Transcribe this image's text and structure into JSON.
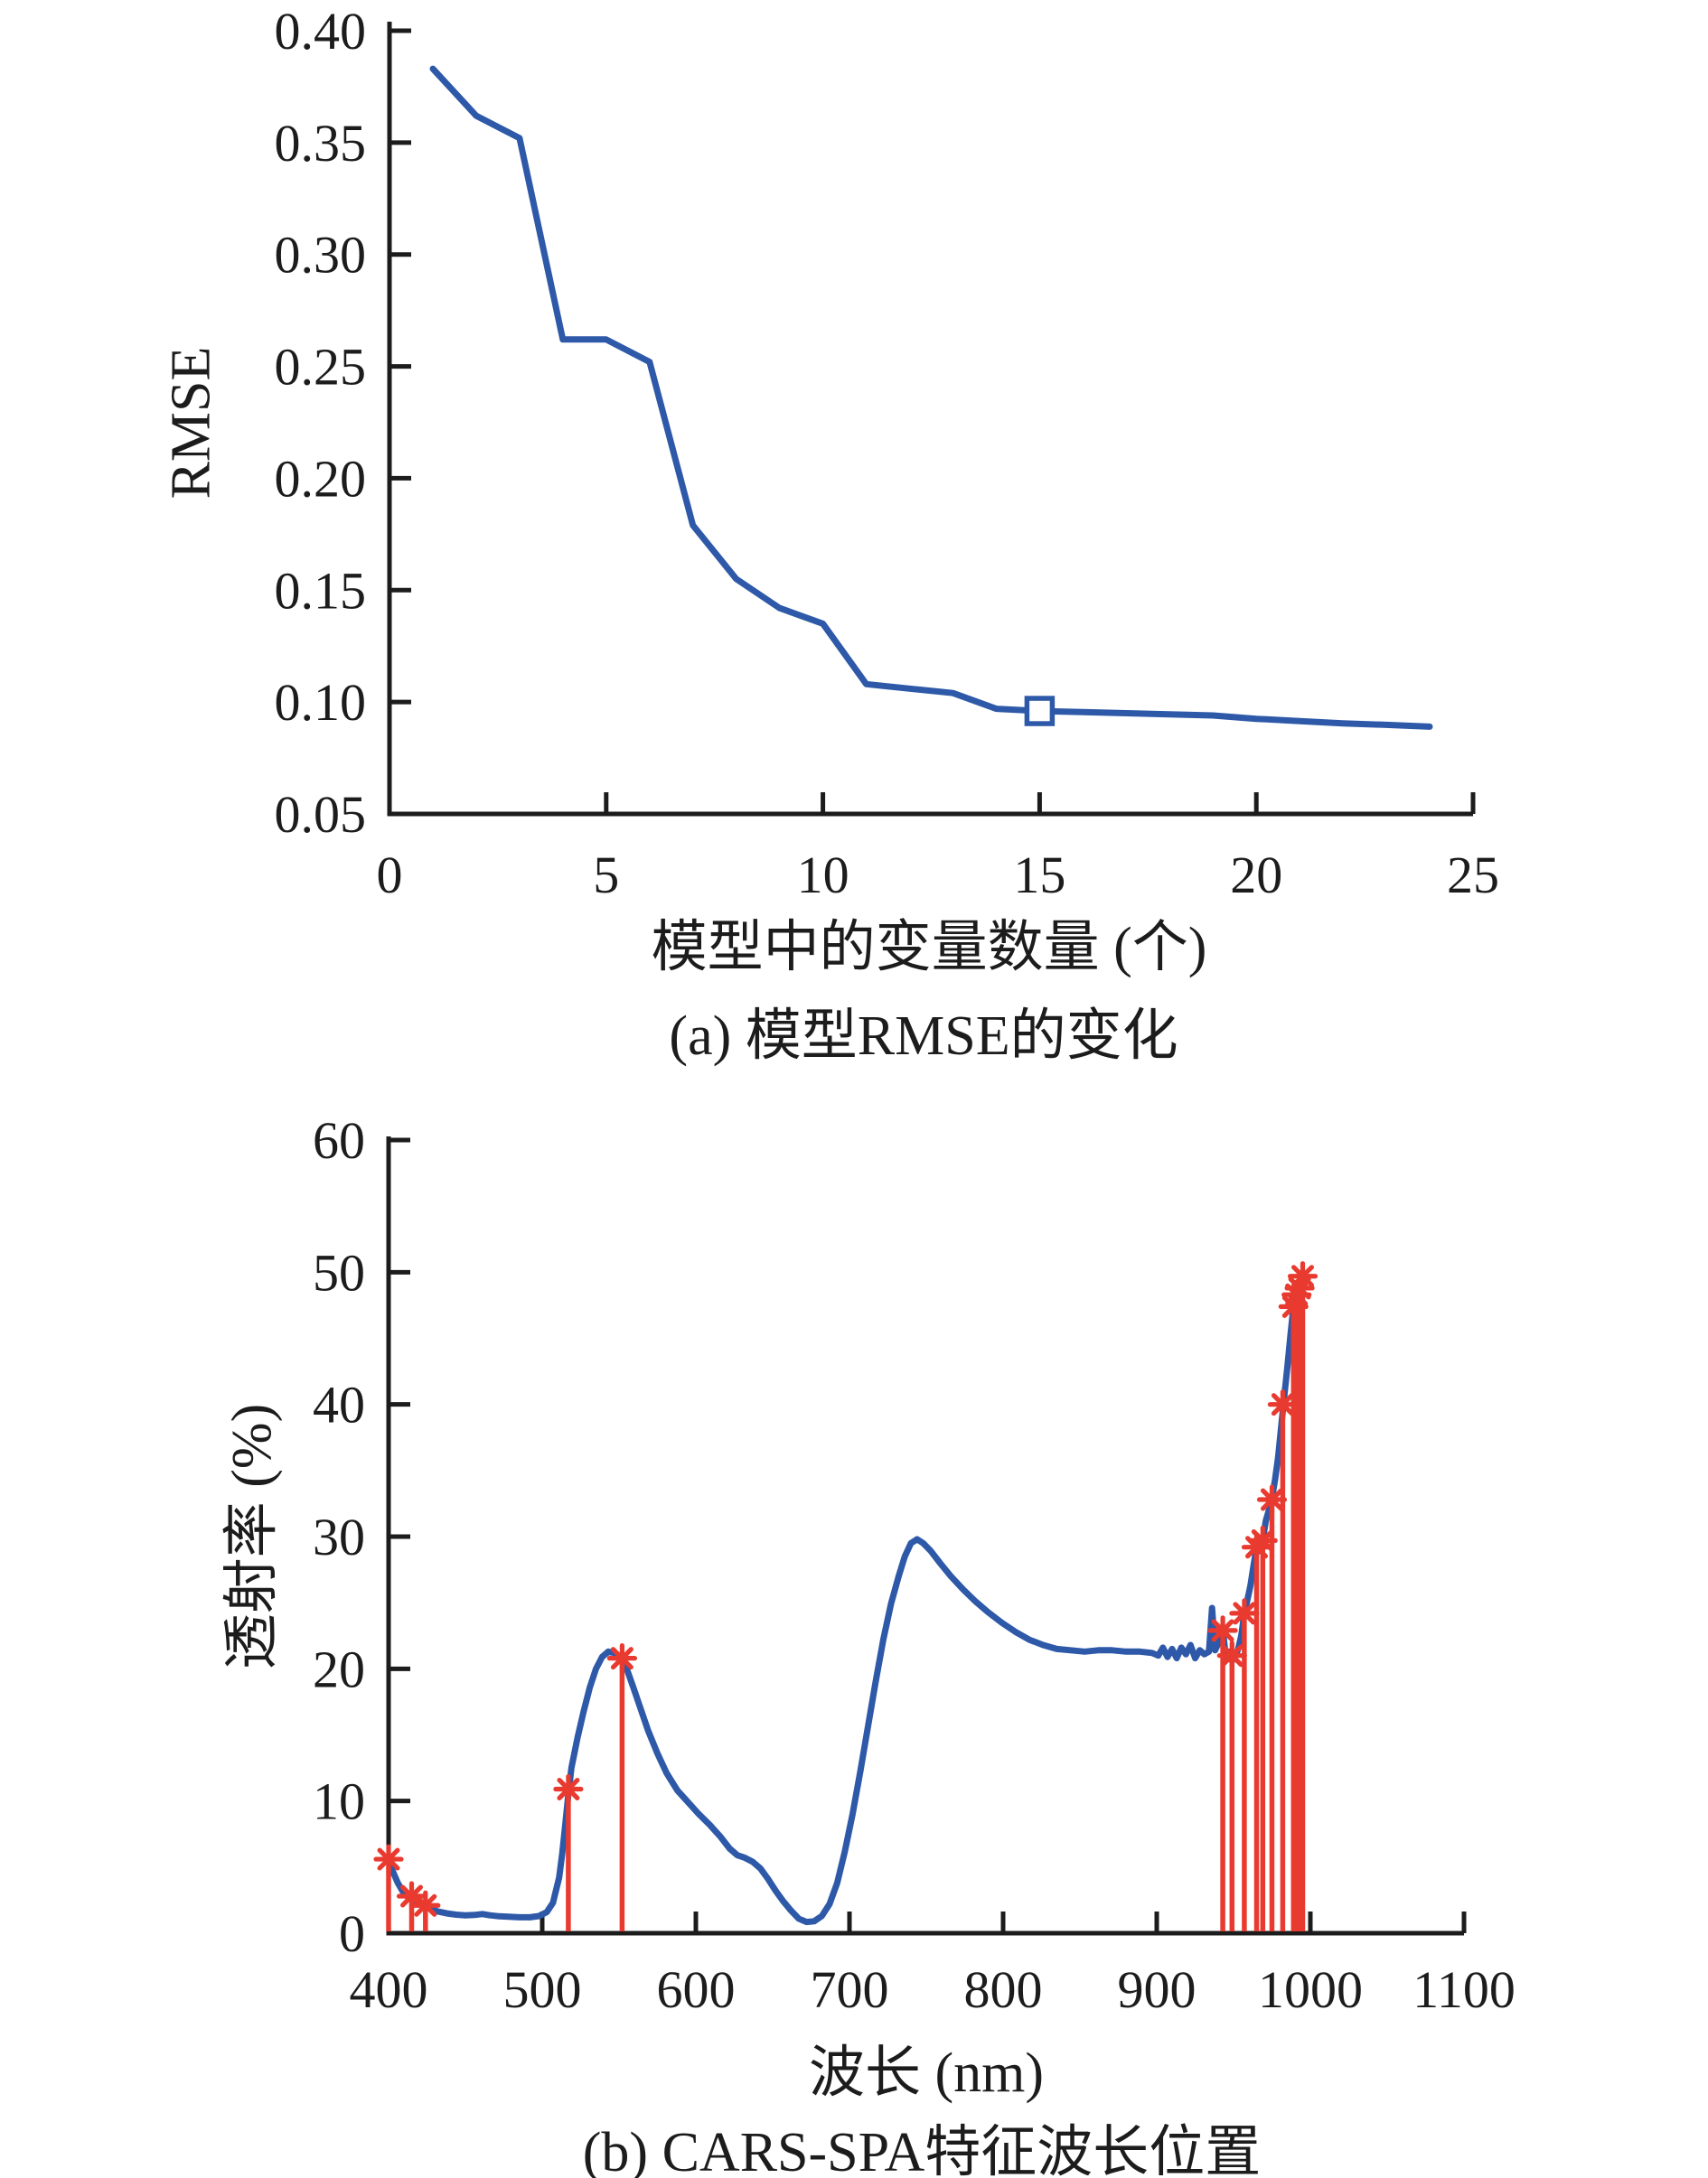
{
  "page_background": "#ffffff",
  "text_color": "#1c1c1c",
  "chart_data": [
    {
      "label": "a",
      "chart_type": "line",
      "caption": "(a) 模型RMSE的变化",
      "x_axis_label": "模型中的变量数量 (个)",
      "y_axis_label": "RMSE",
      "line_color": "#2e59a8",
      "axis_color": "#1c1c1c",
      "xlim": [
        0,
        25
      ],
      "ylim": [
        0.05,
        0.4
      ],
      "grid": false,
      "legend": "none",
      "xticks": {
        "values": [
          0,
          5,
          10,
          15,
          20,
          25
        ],
        "labels": [
          "0",
          "5",
          "10",
          "15",
          "20",
          "25"
        ]
      },
      "yticks": {
        "values": [
          0.05,
          0.1,
          0.15,
          0.2,
          0.25,
          0.3,
          0.35,
          0.4
        ],
        "labels": [
          "0.05",
          "0.10",
          "0.15",
          "0.20",
          "0.25",
          "0.30",
          "0.35",
          "0.40"
        ]
      },
      "series": {
        "name": "RMSE",
        "x": [
          1,
          2,
          3,
          4,
          5,
          6,
          7,
          8,
          9,
          10,
          11,
          12,
          13,
          14,
          15,
          16,
          17,
          18,
          19,
          20,
          21,
          22,
          23,
          24
        ],
        "y": [
          0.383,
          0.362,
          0.352,
          0.262,
          0.262,
          0.252,
          0.179,
          0.155,
          0.142,
          0.135,
          0.108,
          0.106,
          0.104,
          0.097,
          0.096,
          0.0955,
          0.095,
          0.0945,
          0.094,
          0.0925,
          0.0915,
          0.0905,
          0.0898,
          0.089
        ]
      },
      "selected_point": {
        "x": 15,
        "y": 0.096,
        "marker": "open-square",
        "color": "#2e59a8"
      }
    },
    {
      "label": "b",
      "chart_type": "line+stem",
      "caption": "(b) CARS-SPA特征波长位置",
      "x_axis_label": "波长 (nm)",
      "y_axis_label": "透射率 (%)",
      "line_color": "#2e59a8",
      "stem_color": "#e93a30",
      "axis_color": "#1c1c1c",
      "xlim": [
        400,
        1100
      ],
      "ylim": [
        0,
        60
      ],
      "grid": false,
      "legend": "none",
      "xticks": {
        "values": [
          400,
          500,
          600,
          700,
          800,
          900,
          1000,
          1100
        ],
        "labels": [
          "400",
          "500",
          "600",
          "700",
          "800",
          "900",
          "1000",
          "1100"
        ]
      },
      "yticks": {
        "values": [
          0,
          10,
          20,
          30,
          40,
          50,
          60
        ],
        "labels": [
          "0",
          "10",
          "20",
          "30",
          "40",
          "50",
          "60"
        ]
      },
      "spectrum": [
        [
          400,
          5.6
        ],
        [
          403,
          4.6
        ],
        [
          406,
          3.8
        ],
        [
          410,
          3.0
        ],
        [
          414,
          2.6
        ],
        [
          418,
          2.35
        ],
        [
          422,
          2.1
        ],
        [
          427,
          1.85
        ],
        [
          432,
          1.65
        ],
        [
          438,
          1.5
        ],
        [
          444,
          1.4
        ],
        [
          450,
          1.35
        ],
        [
          456,
          1.38
        ],
        [
          461,
          1.45
        ],
        [
          466,
          1.35
        ],
        [
          472,
          1.28
        ],
        [
          478,
          1.25
        ],
        [
          485,
          1.2
        ],
        [
          492,
          1.2
        ],
        [
          498,
          1.3
        ],
        [
          503,
          1.6
        ],
        [
          507,
          2.3
        ],
        [
          511,
          4.2
        ],
        [
          513,
          6.0
        ],
        [
          515,
          8.2
        ],
        [
          517,
          10.5
        ],
        [
          519,
          12.5
        ],
        [
          523,
          14.8
        ],
        [
          527,
          16.8
        ],
        [
          531,
          18.6
        ],
        [
          535,
          20.0
        ],
        [
          539,
          20.9
        ],
        [
          543,
          21.3
        ],
        [
          547,
          21.2
        ],
        [
          551,
          20.8
        ],
        [
          555,
          20.0
        ],
        [
          559,
          18.7
        ],
        [
          564,
          17.0
        ],
        [
          569,
          15.3
        ],
        [
          575,
          13.6
        ],
        [
          581,
          12.1
        ],
        [
          588,
          10.8
        ],
        [
          595,
          9.9
        ],
        [
          602,
          9.0
        ],
        [
          609,
          8.2
        ],
        [
          616,
          7.3
        ],
        [
          622,
          6.4
        ],
        [
          627,
          5.9
        ],
        [
          632,
          5.7
        ],
        [
          637,
          5.4
        ],
        [
          642,
          4.9
        ],
        [
          647,
          4.1
        ],
        [
          652,
          3.2
        ],
        [
          657,
          2.4
        ],
        [
          662,
          1.7
        ],
        [
          667,
          1.1
        ],
        [
          672,
          0.85
        ],
        [
          677,
          0.9
        ],
        [
          682,
          1.3
        ],
        [
          687,
          2.2
        ],
        [
          692,
          3.8
        ],
        [
          697,
          6.2
        ],
        [
          702,
          9.0
        ],
        [
          707,
          12.2
        ],
        [
          712,
          15.6
        ],
        [
          717,
          19.0
        ],
        [
          722,
          22.2
        ],
        [
          727,
          24.9
        ],
        [
          732,
          27.0
        ],
        [
          736,
          28.5
        ],
        [
          740,
          29.5
        ],
        [
          744,
          29.8
        ],
        [
          748,
          29.5
        ],
        [
          753,
          28.9
        ],
        [
          759,
          28.0
        ],
        [
          766,
          27.0
        ],
        [
          774,
          26.0
        ],
        [
          782,
          25.1
        ],
        [
          790,
          24.3
        ],
        [
          799,
          23.5
        ],
        [
          808,
          22.8
        ],
        [
          817,
          22.2
        ],
        [
          826,
          21.8
        ],
        [
          835,
          21.5
        ],
        [
          844,
          21.4
        ],
        [
          853,
          21.3
        ],
        [
          862,
          21.4
        ],
        [
          871,
          21.4
        ],
        [
          880,
          21.3
        ],
        [
          889,
          21.3
        ],
        [
          897,
          21.2
        ],
        [
          901,
          21.0
        ],
        [
          904,
          21.6
        ],
        [
          907,
          20.9
        ],
        [
          910,
          21.5
        ],
        [
          913,
          20.8
        ],
        [
          916,
          21.6
        ],
        [
          919,
          21.1
        ],
        [
          922,
          21.8
        ],
        [
          925,
          20.8
        ],
        [
          928,
          21.4
        ],
        [
          931,
          21.1
        ],
        [
          934,
          21.3
        ],
        [
          936,
          24.6
        ],
        [
          938,
          21.4
        ],
        [
          940,
          21.9
        ],
        [
          943,
          22.9
        ],
        [
          945,
          20.9
        ],
        [
          947,
          21.3
        ],
        [
          949,
          20.6
        ],
        [
          951,
          20.9
        ],
        [
          953,
          21.5
        ],
        [
          955,
          22.5
        ],
        [
          957,
          24.2
        ],
        [
          959,
          25.2
        ],
        [
          961,
          26.3
        ],
        [
          963,
          27.8
        ],
        [
          965,
          29.2
        ],
        [
          967,
          28.9
        ],
        [
          969,
          29.7
        ],
        [
          971,
          31.2
        ],
        [
          973,
          32.0
        ],
        [
          975,
          32.9
        ],
        [
          977,
          34.3
        ],
        [
          979,
          36.0
        ],
        [
          981,
          38.3
        ],
        [
          983,
          40.6
        ],
        [
          985,
          42.8
        ],
        [
          987,
          45.2
        ],
        [
          989,
          47.4
        ],
        [
          991,
          48.4
        ],
        [
          992,
          48.1
        ],
        [
          993,
          48.8
        ],
        [
          994,
          49.2
        ],
        [
          995,
          49.7
        ],
        [
          996,
          49.4
        ]
      ],
      "selected_wavelengths": [
        [
          400,
          5.6
        ],
        [
          415,
          2.8
        ],
        [
          424,
          2.1
        ],
        [
          517,
          10.9
        ],
        [
          552,
          20.8
        ],
        [
          943,
          22.9
        ],
        [
          949,
          21.0
        ],
        [
          957,
          24.2
        ],
        [
          965,
          29.2
        ],
        [
          969,
          29.7
        ],
        [
          975,
          32.8
        ],
        [
          982,
          40.0
        ],
        [
          989,
          47.4
        ],
        [
          991,
          48.3
        ],
        [
          993,
          48.8
        ],
        [
          995,
          49.7
        ]
      ]
    }
  ]
}
